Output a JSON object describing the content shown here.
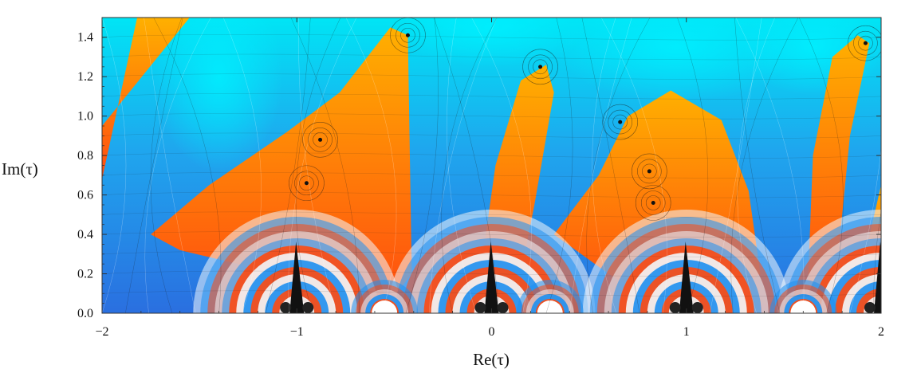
{
  "chart_data": {
    "type": "heatmap",
    "title": "",
    "xlabel": "Re(τ)",
    "ylabel": "Im(τ)",
    "xlim": [
      -2,
      2
    ],
    "ylim": [
      0,
      1.5
    ],
    "x_ticks": [
      "−2",
      "−1",
      "0",
      "1",
      "2"
    ],
    "y_ticks": [
      "0.0",
      "0.2",
      "0.4",
      "0.6",
      "0.8",
      "1.0",
      "1.2",
      "1.4"
    ],
    "x_tick_values": [
      -2,
      -1,
      0,
      1,
      2
    ],
    "y_tick_values": [
      0,
      0.2,
      0.4,
      0.6,
      0.8,
      1.0,
      1.2,
      1.4
    ],
    "colors": {
      "low": "#2a6fe0",
      "mid": "#00e5f5",
      "high": "#ff4a10",
      "peak": "#ffb000",
      "zero": "#111111",
      "near_axis": "#ffffff"
    },
    "zeros": [
      {
        "x": -0.43,
        "y": 1.41
      },
      {
        "x": 0.25,
        "y": 1.25
      },
      {
        "x": 1.92,
        "y": 1.37
      },
      {
        "x": 0.66,
        "y": 0.97
      },
      {
        "x": -0.88,
        "y": 0.88
      },
      {
        "x": 0.81,
        "y": 0.72
      },
      {
        "x": -0.95,
        "y": 0.66
      },
      {
        "x": 0.83,
        "y": 0.56
      }
    ],
    "fan_centers": [
      {
        "x": -1,
        "y": 0
      },
      {
        "x": 0,
        "y": 0
      },
      {
        "x": 1,
        "y": 0
      },
      {
        "x": 2,
        "y": 0
      },
      {
        "x": 0.3,
        "y": 0
      },
      {
        "x": -0.55,
        "y": 0
      },
      {
        "x": 1.6,
        "y": 0
      }
    ]
  }
}
